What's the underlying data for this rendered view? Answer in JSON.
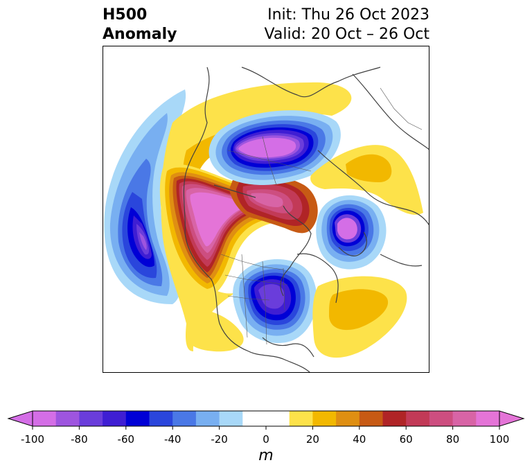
{
  "header": {
    "title_line1": "H500",
    "title_line2": "Anomaly",
    "init_text": "Init: Thu 26 Oct 2023",
    "valid_text": "Valid: 20 Oct – 26 Oct"
  },
  "colorbar": {
    "unit": "m",
    "range": [
      -100,
      100
    ],
    "step": 10,
    "extend": "both",
    "tick_labels": [
      "-100",
      "-80",
      "-60",
      "-40",
      "-20",
      "0",
      "20",
      "40",
      "60",
      "80",
      "100"
    ],
    "colors": [
      "#d46ee6",
      "#9e55df",
      "#6a3ddb",
      "#3f1ed3",
      "#0000d6",
      "#2a46dc",
      "#4a78e6",
      "#78aff1",
      "#a8d8f8",
      "#ffffff",
      "#ffffff",
      "#fde24a",
      "#f2b800",
      "#df8f12",
      "#c75a14",
      "#b02426",
      "#c23a57",
      "#cd4e80",
      "#d864a6",
      "#e474d7"
    ],
    "under_color": "#d46ee6",
    "over_color": "#e474d7"
  },
  "map": {
    "projection": "polar stereographic, North America / North Atlantic sector",
    "colors": {
      "coast": "#404040",
      "light_blue": "#a8d8f8",
      "blue_2": "#78aff1",
      "blue_3": "#4a78e6",
      "blue_4": "#2a46dc",
      "blue_5": "#0000d6",
      "purple_1": "#3f1ed3",
      "purple_2": "#6a3ddb",
      "purple_3": "#9e55df",
      "magenta_neg": "#d46ee6",
      "yellow": "#fde24a",
      "gold": "#f2b800",
      "orange": "#df8f12",
      "dark_orange": "#c75a14",
      "red": "#b02426",
      "crimson": "#c23a57",
      "rose": "#cd4e80",
      "pink": "#d864a6",
      "magenta_pos": "#e474d7"
    }
  }
}
